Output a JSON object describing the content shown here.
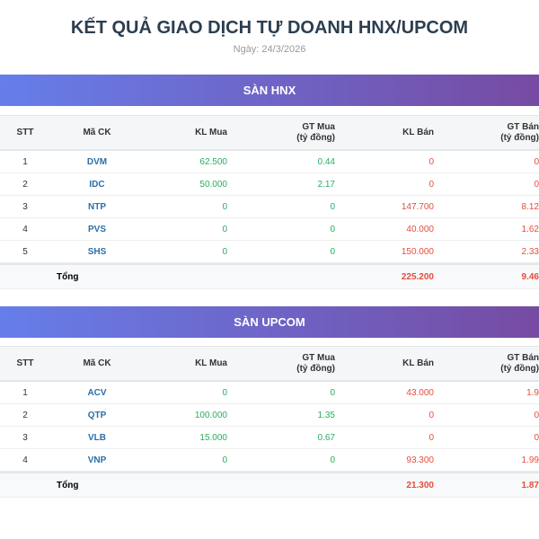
{
  "header": {
    "title": "KẾT QUẢ GIAO DỊCH TỰ DOANH HNX/UPCOM",
    "date": "Ngày: 24/3/2026"
  },
  "sections": [
    {
      "title": "SÀN HNX",
      "columns": [
        [
          "STT"
        ],
        [
          "Mã CK"
        ],
        [
          "KL Mua"
        ],
        [
          "GT Mua",
          "(tỷ đồng)"
        ],
        [
          "KL Bán"
        ],
        [
          "GT Bán",
          "(tỷ đồng)"
        ]
      ],
      "rows": [
        [
          "1",
          "DVM",
          "62.500",
          "0.44",
          "0",
          "0"
        ],
        [
          "2",
          "IDC",
          "50.000",
          "2.17",
          "0",
          "0"
        ],
        [
          "3",
          "NTP",
          "0",
          "0",
          "147.700",
          "8.12"
        ],
        [
          "4",
          "PVS",
          "0",
          "0",
          "40.000",
          "1.62"
        ],
        [
          "5",
          "SHS",
          "0",
          "0",
          "150.000",
          "2.33"
        ]
      ],
      "total": {
        "label": "Tổng",
        "kl_ban": "225.200",
        "gt_ban": "9.46"
      }
    },
    {
      "title": "SÀN UPCOM",
      "columns": [
        [
          "STT"
        ],
        [
          "Mã CK"
        ],
        [
          "KL Mua"
        ],
        [
          "GT Mua",
          "(tỷ đồng)"
        ],
        [
          "KL Bán"
        ],
        [
          "GT Bán",
          "(tỷ đồng)"
        ]
      ],
      "rows": [
        [
          "1",
          "ACV",
          "0",
          "0",
          "43.000",
          "1.9"
        ],
        [
          "2",
          "QTP",
          "100.000",
          "1.35",
          "0",
          "0"
        ],
        [
          "3",
          "VLB",
          "15.000",
          "0.67",
          "0",
          "0"
        ],
        [
          "4",
          "VNP",
          "0",
          "0",
          "93.300",
          "1.99"
        ]
      ],
      "total": {
        "label": "Tổng",
        "kl_ban": "21.300",
        "gt_ban": "1.87"
      }
    }
  ]
}
